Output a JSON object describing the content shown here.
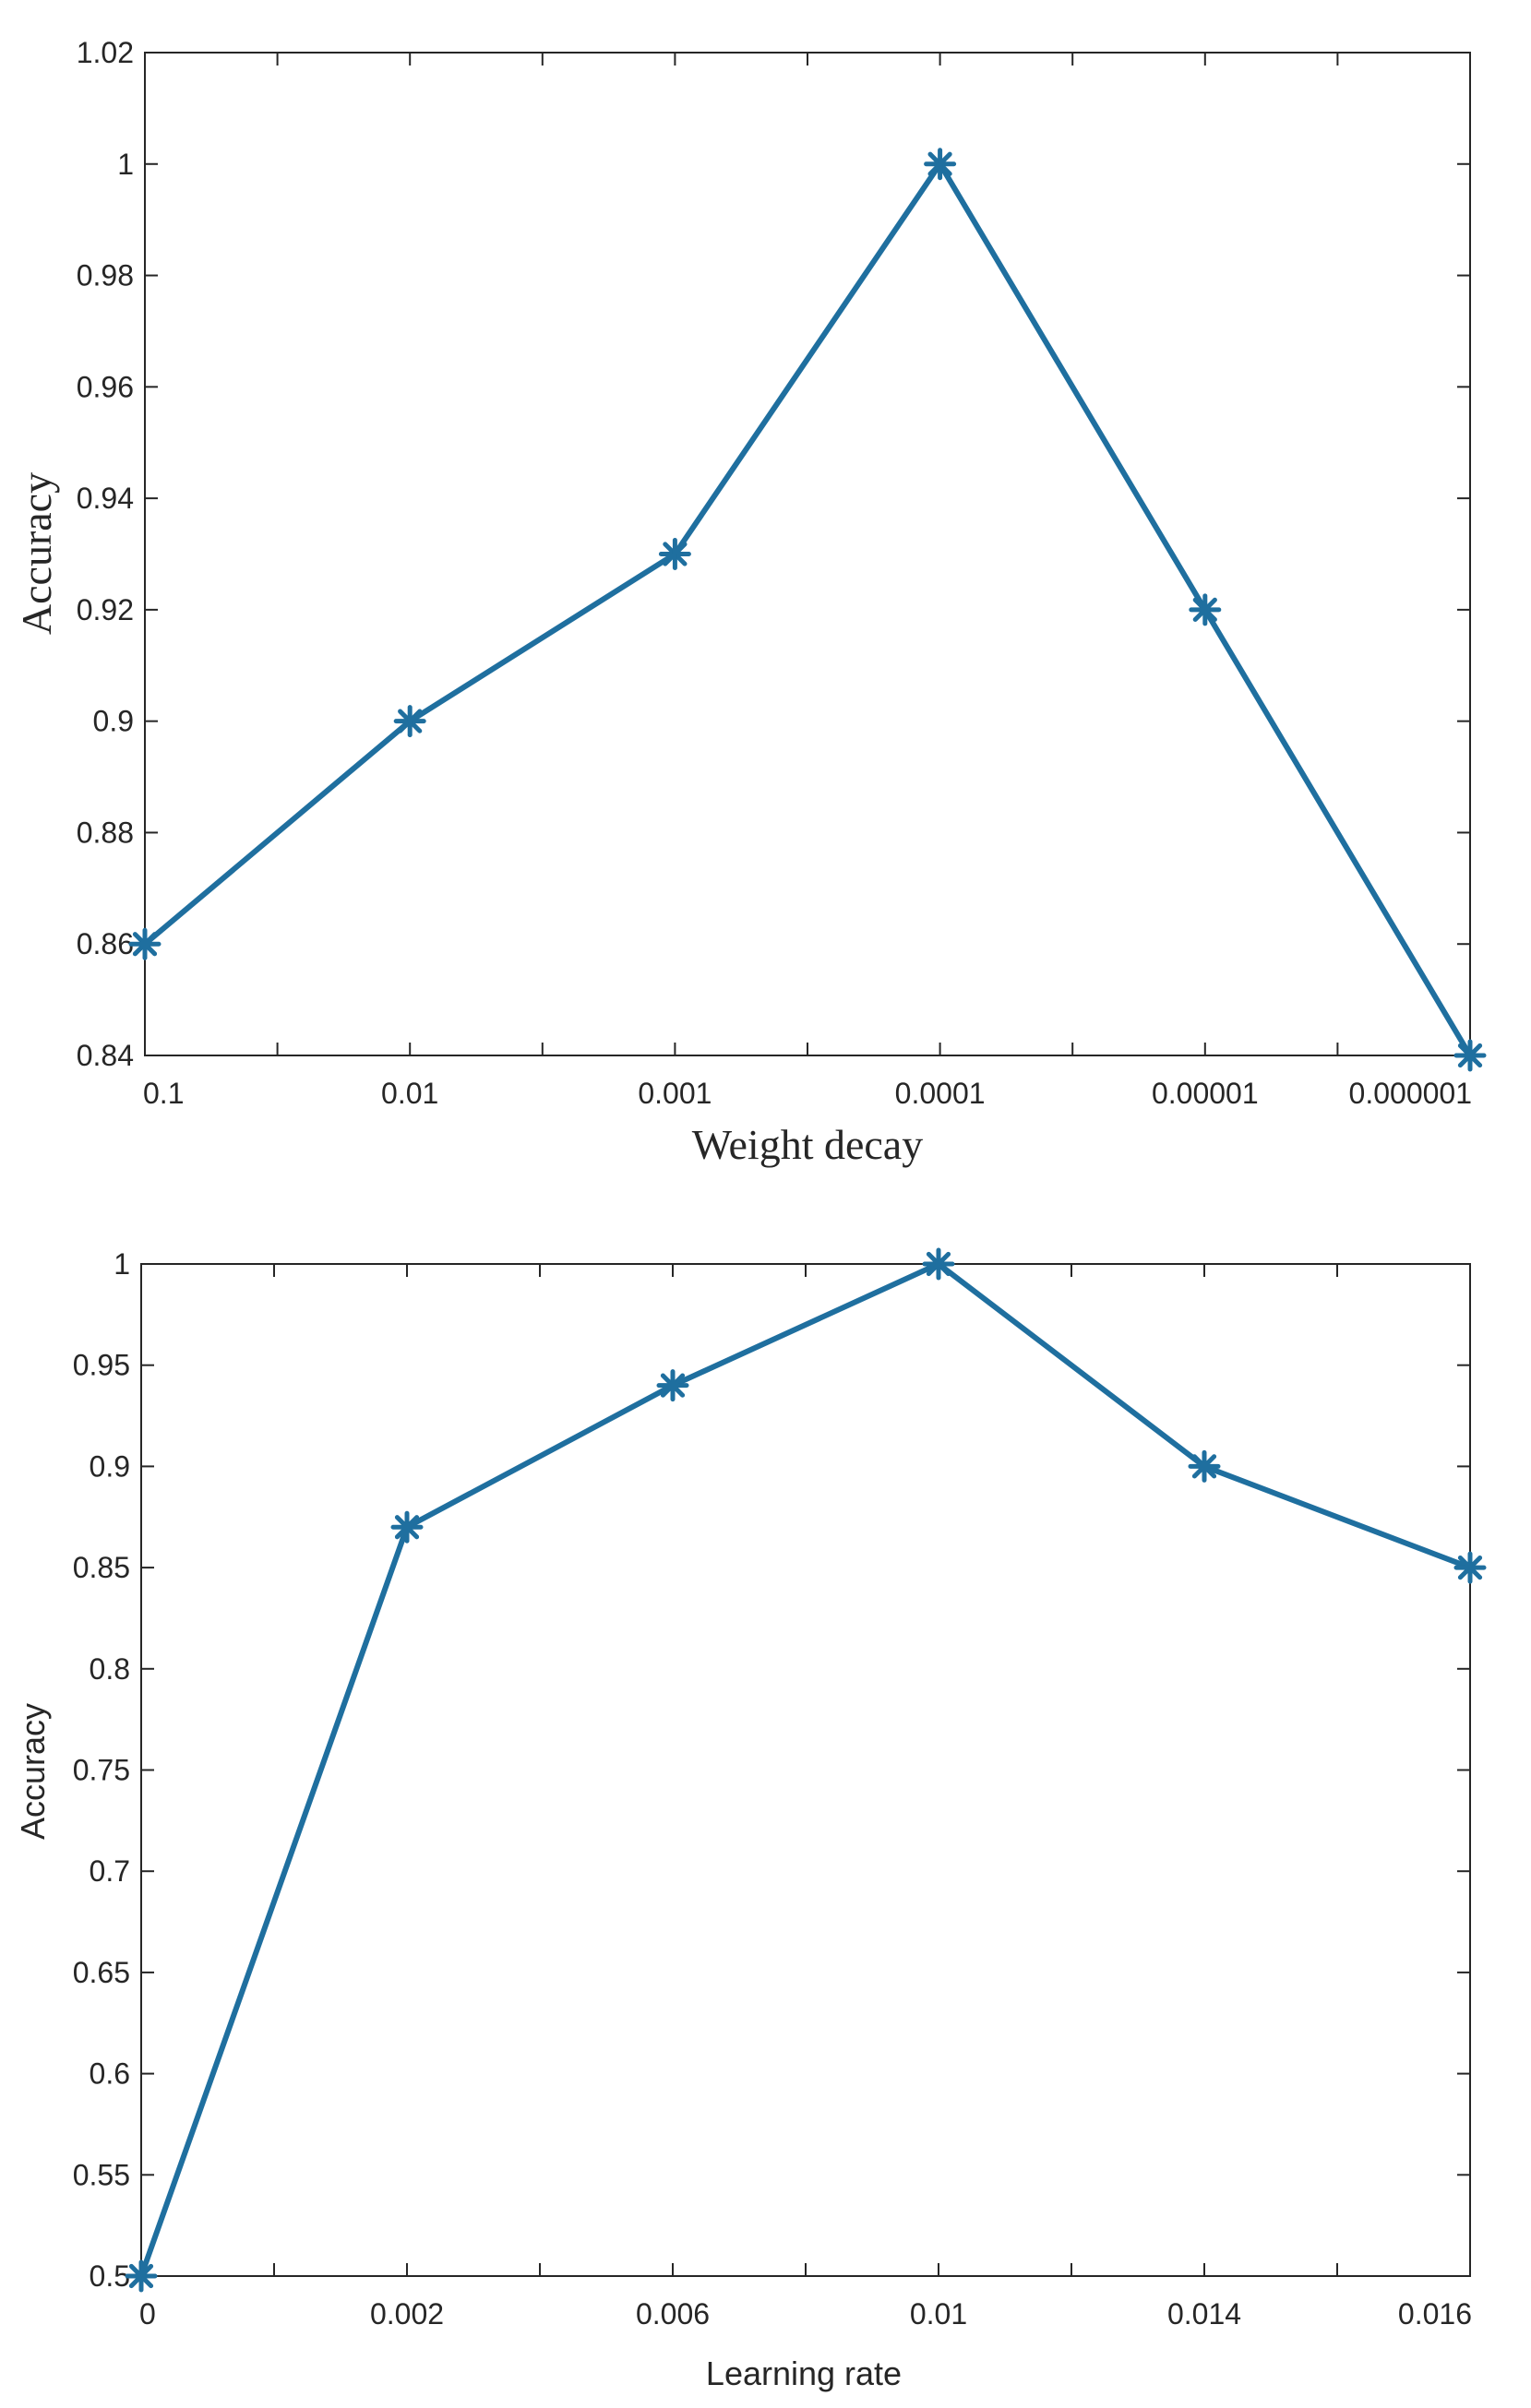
{
  "chart_data": [
    {
      "type": "line",
      "title": "",
      "xlabel": "Weight decay",
      "ylabel": "Accuracy",
      "categories": [
        "0.1",
        "0.01",
        "0.001",
        "0.0001",
        "0.00001",
        "0.000001"
      ],
      "series": [
        {
          "name": "Accuracy",
          "values": [
            0.86,
            0.9,
            0.93,
            1.0,
            0.92,
            0.84
          ]
        }
      ],
      "ylim": [
        0.84,
        1.02
      ],
      "yticks": [
        0.84,
        0.86,
        0.88,
        0.9,
        0.92,
        0.94,
        0.96,
        0.98,
        1,
        1.02
      ],
      "ytick_labels": [
        "0.84",
        "0.86",
        "0.88",
        "0.9",
        "0.92",
        "0.94",
        "0.96",
        "0.98",
        "1",
        "1.02"
      ],
      "grid": false,
      "marker": "asterisk",
      "color": "#1f6f9f"
    },
    {
      "type": "line",
      "title": "",
      "xlabel": "Learning rate",
      "ylabel": "Accuracy",
      "categories": [
        "0",
        "0.002",
        "0.006",
        "0.01",
        "0.014",
        "0.016"
      ],
      "series": [
        {
          "name": "Accuracy",
          "values": [
            0.5,
            0.87,
            0.94,
            1.0,
            0.9,
            0.85
          ]
        }
      ],
      "ylim": [
        0.5,
        1.0
      ],
      "yticks": [
        0.5,
        0.55,
        0.6,
        0.65,
        0.7,
        0.75,
        0.8,
        0.85,
        0.9,
        0.95,
        1
      ],
      "ytick_labels": [
        "0.5",
        "0.55",
        "0.6",
        "0.65",
        "0.7",
        "0.75",
        "0.8",
        "0.85",
        "0.9",
        "0.95",
        "1"
      ],
      "grid": false,
      "marker": "asterisk",
      "color": "#1f6f9f"
    }
  ]
}
